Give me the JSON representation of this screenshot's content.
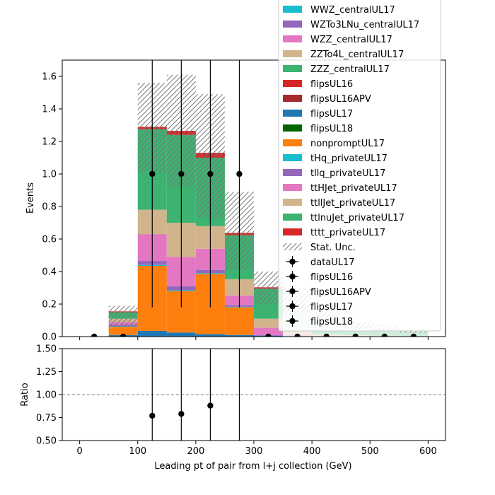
{
  "chart_data": [
    {
      "type": "bar",
      "stacked": true,
      "xlabel": "",
      "ylabel": "Events",
      "xlim": [
        -30,
        630
      ],
      "ylim": [
        0,
        1.7
      ],
      "bin_edges": [
        0,
        50,
        100,
        150,
        200,
        250,
        300,
        350,
        400,
        450,
        500,
        550,
        600
      ],
      "x_ticks": [
        0,
        100,
        200,
        300,
        400,
        500,
        600
      ],
      "y_ticks": [
        0.0,
        0.2,
        0.4,
        0.6,
        0.8,
        1.0,
        1.2,
        1.4,
        1.6
      ],
      "y_tick_labels": [
        "0.0",
        "0.2",
        "0.4",
        "0.6",
        "0.8",
        "1.0",
        "1.2",
        "1.4",
        "1.6"
      ],
      "series": [
        {
          "name": "flipsUL17",
          "color": "#1f77b4",
          "values": [
            0,
            0.01,
            0.035,
            0.025,
            0.015,
            0.01,
            0.005,
            0,
            0,
            0,
            0,
            0
          ]
        },
        {
          "name": "nonpromptUL17",
          "color": "#ff7f0e",
          "values": [
            0,
            0.05,
            0.4,
            0.255,
            0.37,
            0.17,
            0,
            0,
            0,
            0,
            0,
            0
          ]
        },
        {
          "name": "tHq_privateUL17",
          "color": "#17becf",
          "values": [
            0,
            0.003,
            0.005,
            0.005,
            0.005,
            0.003,
            0,
            0,
            0,
            0,
            0,
            0
          ]
        },
        {
          "name": "tllq_privateUL17",
          "color": "#9467bd",
          "values": [
            0,
            0.01,
            0.025,
            0.025,
            0.02,
            0.01,
            0.005,
            0,
            0,
            0,
            0,
            0
          ]
        },
        {
          "name": "ttHJet_privateUL17",
          "color": "#e377c2",
          "values": [
            0,
            0.017,
            0.165,
            0.18,
            0.13,
            0.06,
            0.045,
            0.01,
            0,
            0,
            0,
            0
          ]
        },
        {
          "name": "ttllJet_privateUL17",
          "color": "#d2b48c",
          "values": [
            0,
            0.02,
            0.15,
            0.21,
            0.14,
            0.1,
            0.055,
            0.025,
            0.015,
            0.01,
            0.005,
            0
          ]
        },
        {
          "name": "ttlnuJet_privateUL17",
          "color": "#3cb371",
          "values": [
            0,
            0.04,
            0.495,
            0.54,
            0.42,
            0.27,
            0.185,
            0.15,
            0.07,
            0.045,
            0.04,
            0.03
          ]
        },
        {
          "name": "tttt_privateUL17",
          "color": "#d62728",
          "values": [
            0,
            0.005,
            0.015,
            0.025,
            0.03,
            0.015,
            0.008,
            0.005,
            0.003,
            0.003,
            0,
            0
          ]
        }
      ],
      "unc_band": {
        "label": "Stat. Unc.",
        "low": [
          0,
          0.06,
          1.01,
          0.92,
          0.73,
          0.41,
          0.2,
          0.15,
          0.07,
          0.05,
          0.035,
          0.025
        ],
        "high": [
          0,
          0.19,
          1.56,
          1.61,
          1.49,
          0.89,
          0.4,
          0.3,
          0.17,
          0.09,
          0.075,
          0.045
        ]
      },
      "data_points": {
        "x": [
          25,
          75,
          125,
          175,
          225,
          275,
          325,
          375,
          425,
          475,
          525,
          575
        ],
        "y": [
          0,
          0,
          1,
          1,
          1,
          1,
          0,
          0,
          0,
          0,
          0,
          0
        ],
        "err_high": [
          0,
          0,
          0.72,
          0.72,
          0.72,
          0.72,
          0,
          0,
          0,
          0,
          0,
          0
        ],
        "err_low": [
          0,
          0,
          0.82,
          0.82,
          0.82,
          0.82,
          0,
          0,
          0,
          0,
          0,
          0
        ]
      },
      "legend": {
        "location": "top-right",
        "entries": [
          {
            "label": "WWZ_centralUL17",
            "kind": "patch",
            "color": "#17becf"
          },
          {
            "label": "WZTo3LNu_centralUL17",
            "kind": "patch",
            "color": "#9467bd"
          },
          {
            "label": "WZZ_centralUL17",
            "kind": "patch",
            "color": "#e377c2"
          },
          {
            "label": "ZZTo4L_centralUL17",
            "kind": "patch",
            "color": "#d2b48c"
          },
          {
            "label": "ZZZ_centralUL17",
            "kind": "patch",
            "color": "#3cb371"
          },
          {
            "label": "flipsUL16",
            "kind": "patch",
            "color": "#d62728"
          },
          {
            "label": "flipsUL16APV",
            "kind": "patch",
            "color": "#a52a2a"
          },
          {
            "label": "flipsUL17",
            "kind": "patch",
            "color": "#1f77b4"
          },
          {
            "label": "flipsUL18",
            "kind": "patch",
            "color": "#006400"
          },
          {
            "label": "nonpromptUL17",
            "kind": "patch",
            "color": "#ff7f0e"
          },
          {
            "label": "tHq_privateUL17",
            "kind": "patch",
            "color": "#17becf"
          },
          {
            "label": "tllq_privateUL17",
            "kind": "patch",
            "color": "#9467bd"
          },
          {
            "label": "ttHJet_privateUL17",
            "kind": "patch",
            "color": "#e377c2"
          },
          {
            "label": "ttllJet_privateUL17",
            "kind": "patch",
            "color": "#d2b48c"
          },
          {
            "label": "ttlnuJet_privateUL17",
            "kind": "patch",
            "color": "#3cb371"
          },
          {
            "label": "tttt_privateUL17",
            "kind": "patch",
            "color": "#d62728"
          },
          {
            "label": "Stat. Unc.",
            "kind": "hatch",
            "color": "#777777"
          },
          {
            "label": "dataUL17",
            "kind": "marker",
            "color": "#000000"
          },
          {
            "label": "flipsUL16",
            "kind": "marker",
            "color": "#000000"
          },
          {
            "label": "flipsUL16APV",
            "kind": "marker",
            "color": "#000000"
          },
          {
            "label": "flipsUL17",
            "kind": "marker",
            "color": "#000000"
          },
          {
            "label": "flipsUL18",
            "kind": "marker",
            "color": "#000000"
          }
        ]
      }
    },
    {
      "type": "scatter",
      "xlabel": "Leading pt of pair from l+j collection (GeV)",
      "ylabel": "Ratio",
      "xlim": [
        -30,
        630
      ],
      "ylim": [
        0.5,
        1.5
      ],
      "x_ticks": [
        0,
        100,
        200,
        300,
        400,
        500,
        600
      ],
      "x_tick_labels": [
        "0",
        "100",
        "200",
        "300",
        "400",
        "500",
        "600"
      ],
      "y_ticks": [
        0.5,
        0.75,
        1.0,
        1.25,
        1.5
      ],
      "y_tick_labels": [
        "0.50",
        "0.75",
        "1.00",
        "1.25",
        "1.50"
      ],
      "reference_line": 1.0,
      "points": {
        "x": [
          125,
          175,
          225,
          275
        ],
        "y": [
          0.77,
          0.79,
          0.88,
          null
        ],
        "err_low": [
          0.6,
          0.6,
          0.6,
          0.6
        ],
        "err_high": [
          0.8,
          0.8,
          0.8,
          0.8
        ]
      }
    }
  ]
}
